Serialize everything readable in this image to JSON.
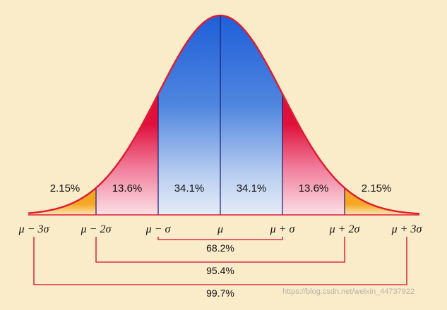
{
  "diagram": {
    "regions": [
      {
        "label": "2.15%",
        "color": "#f5b733"
      },
      {
        "label": "13.6%",
        "color": "#e8204a"
      },
      {
        "label": "34.1%",
        "color": "#2d63d6"
      },
      {
        "label": "34.1%",
        "color": "#2d63d6"
      },
      {
        "label": "13.6%",
        "color": "#e8204a"
      },
      {
        "label": "2.15%",
        "color": "#f5b733"
      }
    ],
    "axis_labels": [
      "μ − 3σ",
      "μ − 2σ",
      "μ − σ",
      "μ",
      "μ + σ",
      "μ + 2σ",
      "μ + 3σ"
    ],
    "brackets": [
      {
        "label": "68.2%",
        "sigma": 1
      },
      {
        "label": "95.4%",
        "sigma": 2
      },
      {
        "label": "99.7%",
        "sigma": 3
      }
    ],
    "curve_color": "#e01b2f",
    "background": "#faebc9",
    "watermark": "https://blog.csdn.net/weixin_44737922"
  }
}
